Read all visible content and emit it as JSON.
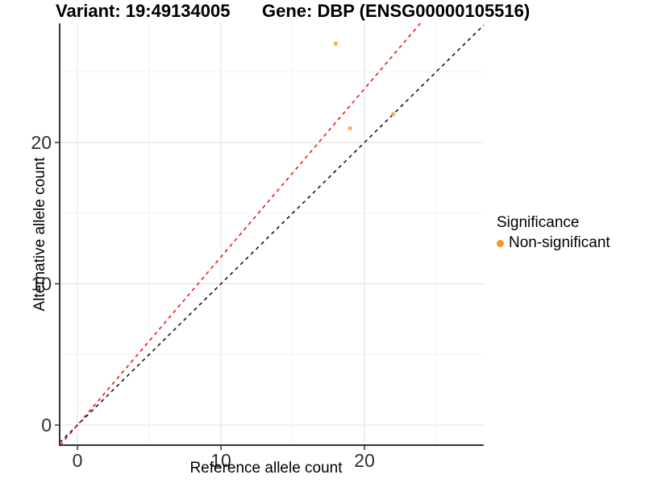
{
  "titles": {
    "variant": "Variant: 19:49134005",
    "gene": "Gene: DBP (ENSG00000105516)"
  },
  "axes": {
    "x": {
      "label": "Reference allele count",
      "tick_labels": [
        "0",
        "10",
        "20"
      ]
    },
    "y": {
      "label": "Alternative allele count",
      "tick_labels": [
        "0",
        "10",
        "20"
      ]
    }
  },
  "legend": {
    "title": "Significance",
    "items": [
      {
        "label": "Non-significant",
        "color": "#F8941F"
      }
    ]
  },
  "colors": {
    "point": "#F9A243",
    "identity_line": "#141414",
    "ratio_line": "#F01414",
    "grid_major": "#E4E4E4",
    "grid_minor": "#F2F2F2",
    "axis_line": "#333333",
    "tick_text": "#2F2F2F"
  },
  "chart_data": {
    "type": "scatter",
    "title": "Variant: 19:49134005 — Gene: DBP (ENSG00000105516)",
    "xlabel": "Reference allele count",
    "ylabel": "Alternative allele count",
    "xlim": [
      -1.24,
      28.31
    ],
    "ylim": [
      -1.42,
      28.43
    ],
    "x_major_ticks": [
      0,
      10,
      20
    ],
    "x_minor_ticks": [
      5,
      15,
      25
    ],
    "y_major_ticks": [
      0,
      10,
      20
    ],
    "y_minor_ticks": [
      5,
      15,
      25
    ],
    "grid": true,
    "legend_position": "right",
    "series": [
      {
        "name": "Non-significant",
        "points": [
          {
            "x": 18,
            "y": 27
          },
          {
            "x": 19,
            "y": 21
          },
          {
            "x": 22,
            "y": 22
          }
        ]
      }
    ],
    "lines": [
      {
        "name": "identity-line",
        "slope": 1.0,
        "intercept": 0,
        "style": "dashed"
      },
      {
        "name": "expected-ratio-line",
        "slope": 1.19,
        "intercept": 0,
        "style": "dashed"
      }
    ]
  }
}
